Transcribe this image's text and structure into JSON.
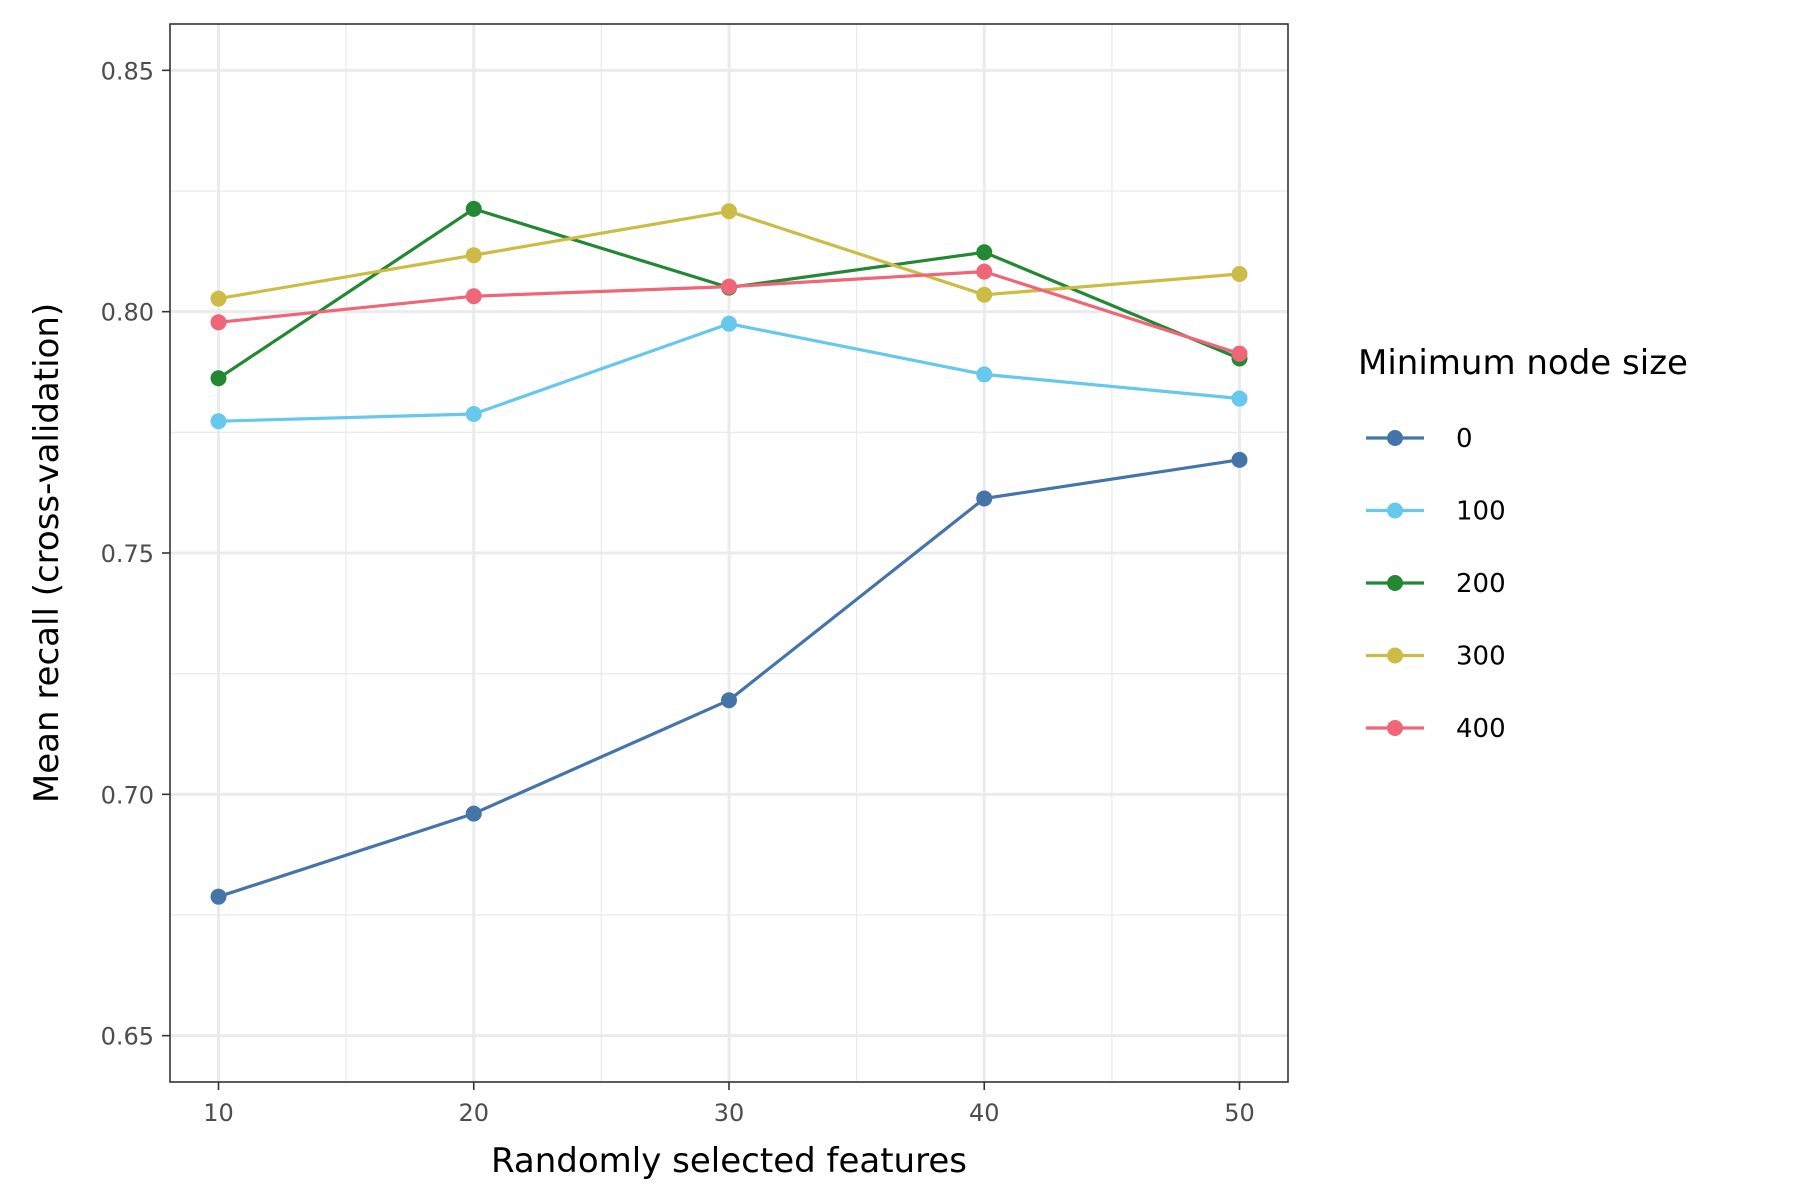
{
  "chart_data": {
    "type": "line",
    "title": "",
    "xlabel": "Randomly selected features",
    "ylabel": "Mean recall (cross-validation)",
    "x": [
      10,
      20,
      30,
      40,
      50
    ],
    "x_ticks": [
      "10",
      "20",
      "30",
      "40",
      "50"
    ],
    "y_ticks": [
      "0.65",
      "0.70",
      "0.75",
      "0.80",
      "0.85"
    ],
    "xlim": [
      8.1,
      51.9
    ],
    "ylim": [
      0.6404,
      0.8596
    ],
    "grid": true,
    "legend": {
      "title": "Minimum node size",
      "placement": "right"
    },
    "series": [
      {
        "name": "0",
        "color": "#4575a8",
        "values": [
          0.6788,
          0.696,
          0.7195,
          0.7613,
          0.7693
        ]
      },
      {
        "name": "100",
        "color": "#66c8ec",
        "values": [
          0.7773,
          0.7788,
          0.7975,
          0.787,
          0.782
        ]
      },
      {
        "name": "200",
        "color": "#228833",
        "values": [
          0.7862,
          0.8213,
          0.805,
          0.8123,
          0.7903
        ]
      },
      {
        "name": "300",
        "color": "#ccbb44",
        "values": [
          0.8027,
          0.8117,
          0.8208,
          0.8035,
          0.8078
        ]
      },
      {
        "name": "400",
        "color": "#ee6677",
        "values": [
          0.7978,
          0.8032,
          0.8052,
          0.8083,
          0.7913
        ]
      }
    ]
  }
}
